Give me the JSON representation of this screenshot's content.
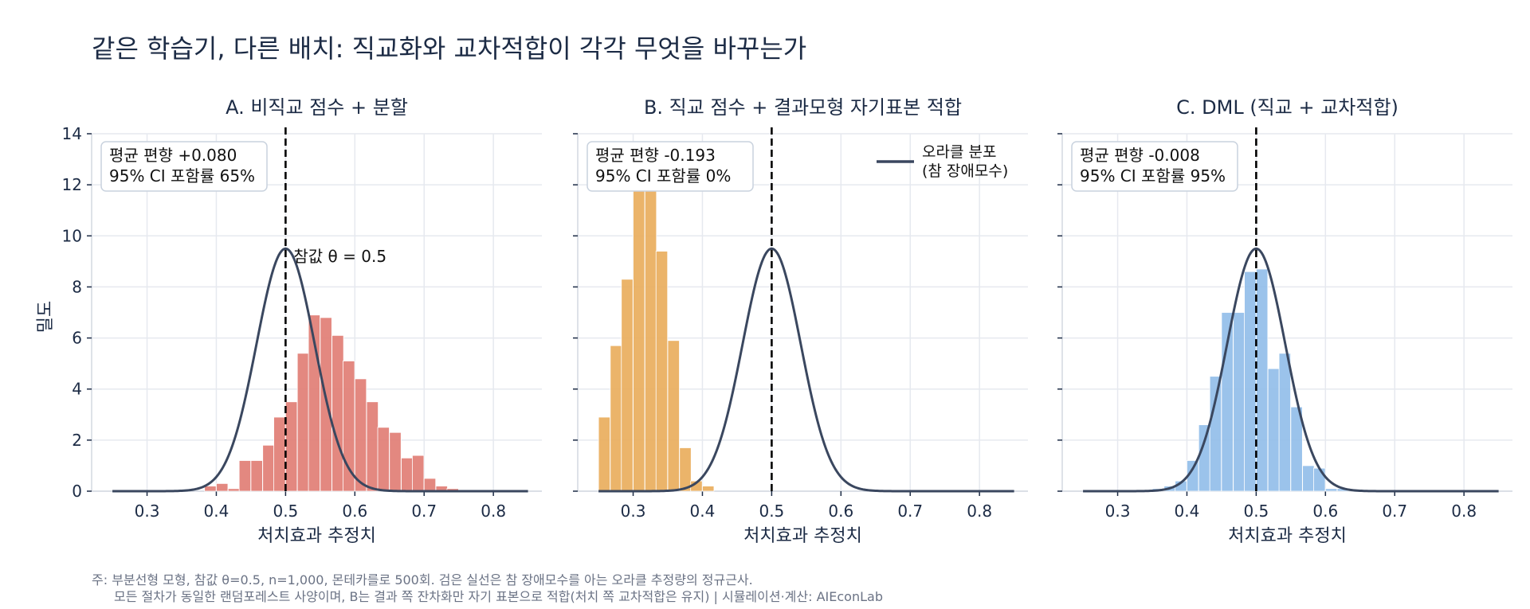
{
  "title": "같은 학습기, 다른 배치: 직교화와 교차적합이 각각 무엇을 바꾸는가",
  "ylabel": "밀도",
  "xlabel": "처치효과 추정치",
  "note_line1": "주: 부분선형 모형, 참값 θ=0.5, n=1,000, 몬테카를로 500회. 검은 실선은 참 장애모수를 아는 오라클 추정량의 정규근사.",
  "note_line2": "모든 절차가 동일한 랜덤포레스트 사양이며, B는 결과 쪽 잔차화만 자기 표본으로 적합(처치 쪽 교차적합은 유지)  |  시뮬레이션·계산: AIEconLab",
  "true_value_label": "참값 θ = 0.5",
  "legend": {
    "line1": "오라클 분포",
    "line2": "(참 장애모수)"
  },
  "colors": {
    "panelA": "#e07b72",
    "panelB": "#e9ac5a",
    "panelC": "#90bde9",
    "oracle": "#3a475f",
    "grid": "#e6e9ef"
  },
  "chart_data": [
    {
      "type": "bar",
      "title": "A. 비직교 점수 + 분할",
      "annotation": [
        "평균 편향 +0.080",
        "95% CI 포함률 65%"
      ],
      "bin_width": 0.0167,
      "bin_starts": [
        0.383,
        0.4,
        0.417,
        0.433,
        0.45,
        0.467,
        0.483,
        0.5,
        0.517,
        0.533,
        0.55,
        0.567,
        0.583,
        0.6,
        0.617,
        0.633,
        0.65,
        0.667,
        0.683,
        0.7,
        0.717,
        0.733,
        0.75,
        0.767,
        0.783,
        0.8,
        0.817,
        0.833
      ],
      "values": [
        0.2,
        0.3,
        0.1,
        1.2,
        1.2,
        1.8,
        2.9,
        3.5,
        5.4,
        6.9,
        6.8,
        6.1,
        5.1,
        4.4,
        3.5,
        2.5,
        2.3,
        1.3,
        1.4,
        0.5,
        0.2,
        0.1,
        0.05,
        0.05,
        0.0,
        0.0,
        0.05,
        0.05
      ],
      "xlim": [
        0.22,
        0.87
      ],
      "ylim": [
        0,
        14
      ],
      "xticks": [
        "0.3",
        "0.4",
        "0.5",
        "0.6",
        "0.7",
        "0.8"
      ],
      "yticks": [
        "0",
        "2",
        "4",
        "6",
        "8",
        "10",
        "12",
        "14"
      ],
      "oracle": {
        "mean": 0.5,
        "sd": 0.042
      },
      "true_value": 0.5,
      "show_true_label": true,
      "show_legend": false
    },
    {
      "type": "bar",
      "title": "B. 직교 점수 + 결과모형 자기표본 적합",
      "annotation": [
        "평균 편향 -0.193",
        "95% CI 포함률 0%"
      ],
      "bin_width": 0.0167,
      "bin_starts": [
        0.25,
        0.267,
        0.283,
        0.3,
        0.317,
        0.333,
        0.35,
        0.367,
        0.383,
        0.4
      ],
      "values": [
        2.9,
        5.7,
        8.3,
        11.8,
        11.8,
        9.4,
        5.9,
        1.7,
        0.4,
        0.2
      ],
      "xlim": [
        0.22,
        0.87
      ],
      "ylim": [
        0,
        14
      ],
      "xticks": [
        "0.3",
        "0.4",
        "0.5",
        "0.6",
        "0.7",
        "0.8"
      ],
      "yticks": [],
      "oracle": {
        "mean": 0.5,
        "sd": 0.042
      },
      "true_value": 0.5,
      "show_true_label": false,
      "show_legend": true
    },
    {
      "type": "bar",
      "title": "C. DML (직교 + 교차적합)",
      "annotation": [
        "평균 편향 -0.008",
        "95% CI 포함률 95%"
      ],
      "bin_width": 0.0167,
      "bin_starts": [
        0.333,
        0.35,
        0.367,
        0.383,
        0.4,
        0.417,
        0.433,
        0.45,
        0.467,
        0.483,
        0.5,
        0.517,
        0.533,
        0.55,
        0.567,
        0.583,
        0.6,
        0.617,
        0.633,
        0.65
      ],
      "values": [
        0.05,
        0.1,
        0.2,
        0.4,
        1.2,
        2.6,
        4.5,
        7.0,
        7.0,
        8.6,
        8.7,
        4.8,
        5.4,
        3.3,
        1.0,
        0.9,
        0.1,
        0.1,
        0.05,
        0.05
      ],
      "xlim": [
        0.22,
        0.87
      ],
      "ylim": [
        0,
        14
      ],
      "xticks": [
        "0.3",
        "0.4",
        "0.5",
        "0.6",
        "0.7",
        "0.8"
      ],
      "yticks": [],
      "oracle": {
        "mean": 0.5,
        "sd": 0.042
      },
      "true_value": 0.5,
      "show_true_label": false,
      "show_legend": false
    }
  ]
}
